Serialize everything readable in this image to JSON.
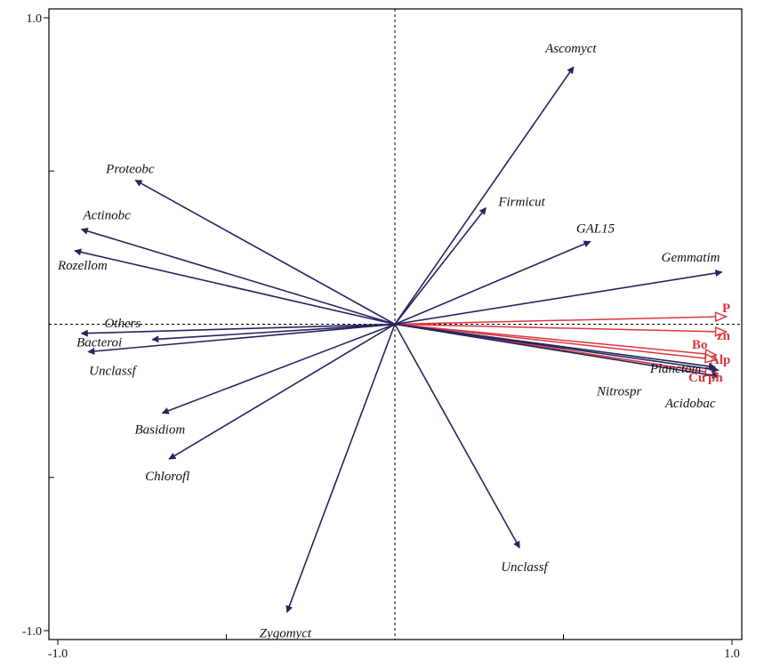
{
  "chart_data": {
    "type": "ordination-biplot",
    "xlim": [
      -1.0,
      1.0
    ],
    "ylim": [
      -1.0,
      1.0
    ],
    "x_tick_labels": [
      {
        "v": -1.0,
        "label": "-1.0"
      },
      {
        "v": 1.0,
        "label": "1.0"
      }
    ],
    "y_tick_labels": [
      {
        "v": 1.0,
        "label": "1.0"
      },
      {
        "v": -1.0,
        "label": "-1.0"
      }
    ],
    "x_minor_ticks": [
      -0.5,
      0.5
    ],
    "y_minor_ticks": [
      0.5,
      -0.5
    ],
    "zero_lines": true,
    "colors": {
      "species": "#25255e",
      "environment": "#d9363e",
      "frame": "#000000"
    },
    "species": [
      {
        "label": "Ascomyct",
        "x": 0.53,
        "y": 0.84
      },
      {
        "label": "Firmicut",
        "x": 0.27,
        "y": 0.38
      },
      {
        "label": "GAL15",
        "x": 0.58,
        "y": 0.27
      },
      {
        "label": "Gemmatim",
        "x": 0.97,
        "y": 0.17
      },
      {
        "label": "Planctom",
        "x": 0.96,
        "y": -0.15
      },
      {
        "label": "Nitrospr",
        "x": 0.95,
        "y": -0.14
      },
      {
        "label": "Acidobac",
        "x": 0.96,
        "y": -0.17
      },
      {
        "label": "Unclassf",
        "x": 0.37,
        "y": -0.73
      },
      {
        "label": "Zygomyct",
        "x": -0.32,
        "y": -0.94
      },
      {
        "label": "Chlorofl",
        "x": -0.67,
        "y": -0.44
      },
      {
        "label": "Basidiom",
        "x": -0.69,
        "y": -0.29
      },
      {
        "label": "Unclassf",
        "x": -0.91,
        "y": -0.09
      },
      {
        "label": "Bacteroi",
        "x": -0.72,
        "y": -0.05
      },
      {
        "label": "Others",
        "x": -0.93,
        "y": -0.03
      },
      {
        "label": "Rozellom",
        "x": -0.95,
        "y": 0.24
      },
      {
        "label": "Actinobc",
        "x": -0.93,
        "y": 0.31
      },
      {
        "label": "Proteobc",
        "x": -0.77,
        "y": 0.47
      }
    ],
    "environment": [
      {
        "label": "P",
        "x": 0.98,
        "y": 0.025
      },
      {
        "label": "zn",
        "x": 0.98,
        "y": -0.025
      },
      {
        "label": "Bo",
        "x": 0.95,
        "y": -0.1
      },
      {
        "label": "Alp",
        "x": 0.95,
        "y": -0.115
      },
      {
        "label": "Cu",
        "x": 0.95,
        "y": -0.16
      },
      {
        "label": "ph",
        "x": 0.95,
        "y": -0.16
      }
    ]
  }
}
